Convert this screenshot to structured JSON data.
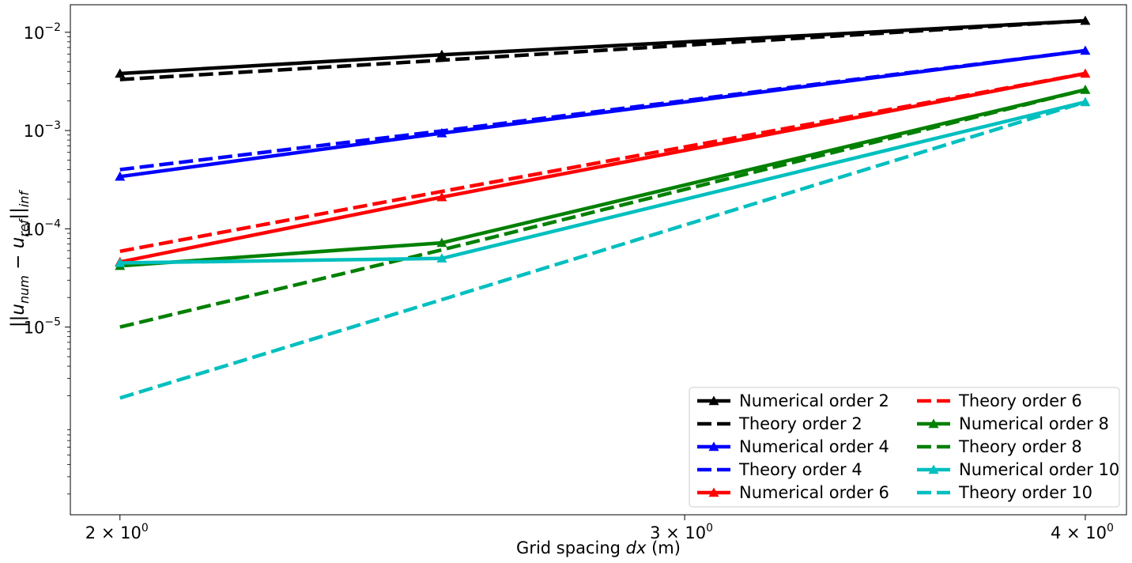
{
  "chart_data": {
    "type": "line",
    "title": "",
    "xlabel": "Grid spacing dx (m)",
    "xlabel_parts": {
      "before": "Grid spacing ",
      "italic": "dx",
      "after": " (m)"
    },
    "ylabel": "||u_num − u_ref||_inf",
    "ylabel_parts": {
      "open": "||",
      "u1": "u",
      "sub1": "num",
      "minus": " − ",
      "u2": "u",
      "sub2": "ref",
      "close": "||",
      "sub3": "inf"
    },
    "xscale": "log",
    "yscale": "log",
    "xlim": [
      1.93,
      4.12
    ],
    "ylim_log10": [
      -6.91,
      -1.72
    ],
    "x_ticks": [
      {
        "value": 2,
        "base": "2 × 10",
        "exp": "0"
      },
      {
        "value": 3,
        "base": "3 × 10",
        "exp": "0"
      },
      {
        "value": 4,
        "base": "4 × 10",
        "exp": "0"
      }
    ],
    "y_ticks": [
      {
        "value": 1e-05,
        "base": "10",
        "exp": "−5"
      },
      {
        "value": 0.0001,
        "base": "10",
        "exp": "−4"
      },
      {
        "value": 0.001,
        "base": "10",
        "exp": "−3"
      },
      {
        "value": 0.01,
        "base": "10",
        "exp": "−2"
      }
    ],
    "grid": false,
    "legend": {
      "placement": "lower-right",
      "columns": 2
    },
    "x": [
      2.0,
      2.52,
      4.0
    ],
    "series": [
      {
        "name": "Numerical order 2",
        "color": "#000000",
        "style": "solid",
        "marker": "triangle",
        "values": [
          0.0038,
          0.0059,
          0.0131
        ]
      },
      {
        "name": "Theory order 2",
        "color": "#000000",
        "style": "dashed",
        "marker": "none",
        "values": [
          0.0033,
          0.0052,
          0.0131
        ]
      },
      {
        "name": "Numerical order 4",
        "color": "#0000ff",
        "style": "solid",
        "marker": "triangle",
        "values": [
          0.00034,
          0.00094,
          0.0065
        ]
      },
      {
        "name": "Theory order 4",
        "color": "#0000ff",
        "style": "dashed",
        "marker": "none",
        "values": [
          0.0004,
          0.00099,
          0.0065
        ]
      },
      {
        "name": "Numerical order 6",
        "color": "#ff0000",
        "style": "solid",
        "marker": "triangle",
        "values": [
          4.6e-05,
          0.00021,
          0.0038
        ]
      },
      {
        "name": "Theory order 6",
        "color": "#ff0000",
        "style": "dashed",
        "marker": "none",
        "values": [
          5.9e-05,
          0.00024,
          0.0038
        ]
      },
      {
        "name": "Numerical order 8",
        "color": "#008000",
        "style": "solid",
        "marker": "triangle",
        "values": [
          4.2e-05,
          7.2e-05,
          0.0026
        ]
      },
      {
        "name": "Theory order 8",
        "color": "#008000",
        "style": "dashed",
        "marker": "none",
        "values": [
          1e-05,
          6.1e-05,
          0.0026
        ]
      },
      {
        "name": "Numerical order 10",
        "color": "#00bfbf",
        "style": "solid",
        "marker": "triangle",
        "values": [
          4.5e-05,
          5e-05,
          0.00195
        ]
      },
      {
        "name": "Theory order 10",
        "color": "#00bfbf",
        "style": "dashed",
        "marker": "none",
        "values": [
          1.9e-06,
          1.9e-05,
          0.00195
        ]
      }
    ]
  }
}
